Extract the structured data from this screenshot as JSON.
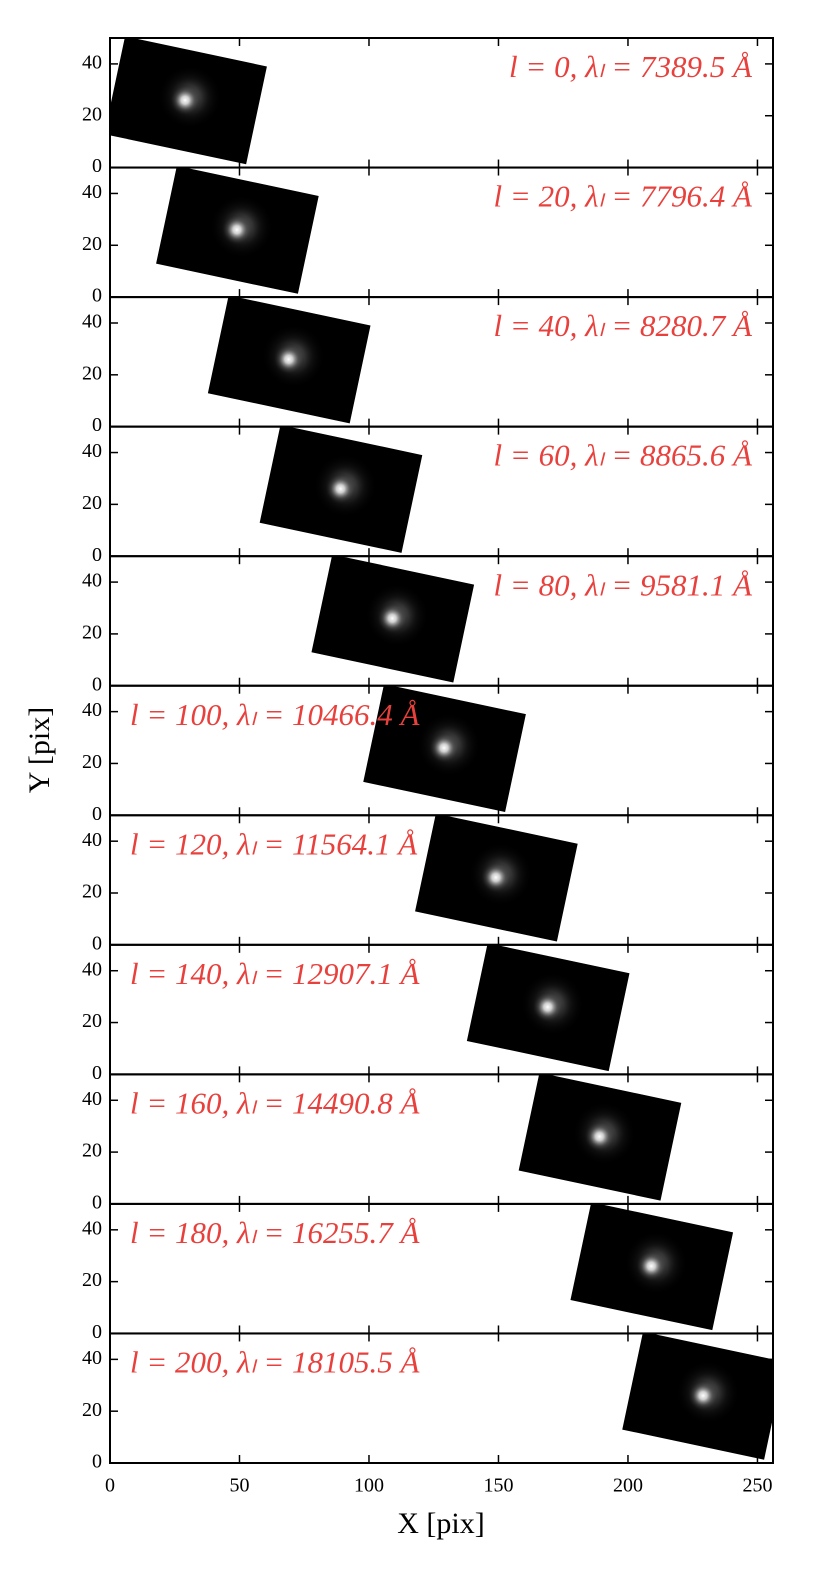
{
  "chart_data": {
    "type": "image-grid",
    "x_label": "X [pix]",
    "y_label": "Y [pix]",
    "xlim": [
      0,
      256
    ],
    "xticks": [
      0,
      50,
      100,
      150,
      200,
      250
    ],
    "ylim": [
      0,
      50
    ],
    "yticks": [
      0,
      20,
      40
    ],
    "label_color": "#e8403c",
    "panels": [
      {
        "label": "l = 0, λₗ = 7389.5 Å",
        "source": {
          "x": 29,
          "y": 26
        }
      },
      {
        "label": "l = 20, λₗ = 7796.4 Å",
        "source": {
          "x": 49,
          "y": 26
        }
      },
      {
        "label": "l = 40, λₗ = 8280.7 Å",
        "source": {
          "x": 69,
          "y": 26
        }
      },
      {
        "label": "l = 60, λₗ = 8865.6 Å",
        "source": {
          "x": 89,
          "y": 26
        }
      },
      {
        "label": "l = 80, λₗ = 9581.1 Å",
        "source": {
          "x": 109,
          "y": 26
        }
      },
      {
        "label": "l = 100, λₗ = 10466.4 Å",
        "source": {
          "x": 129,
          "y": 26
        }
      },
      {
        "label": "l = 120, λₗ = 11564.1 Å",
        "source": {
          "x": 149,
          "y": 26
        }
      },
      {
        "label": "l = 140, λₗ = 12907.1 Å",
        "source": {
          "x": 169,
          "y": 26
        }
      },
      {
        "label": "l = 160, λₗ = 14490.8 Å",
        "source": {
          "x": 189,
          "y": 26
        }
      },
      {
        "label": "l = 180, λₗ = 16255.7 Å",
        "source": {
          "x": 209,
          "y": 26
        }
      },
      {
        "label": "l = 200, λₗ = 18105.5 Å",
        "source": {
          "x": 229,
          "y": 26
        }
      }
    ]
  }
}
